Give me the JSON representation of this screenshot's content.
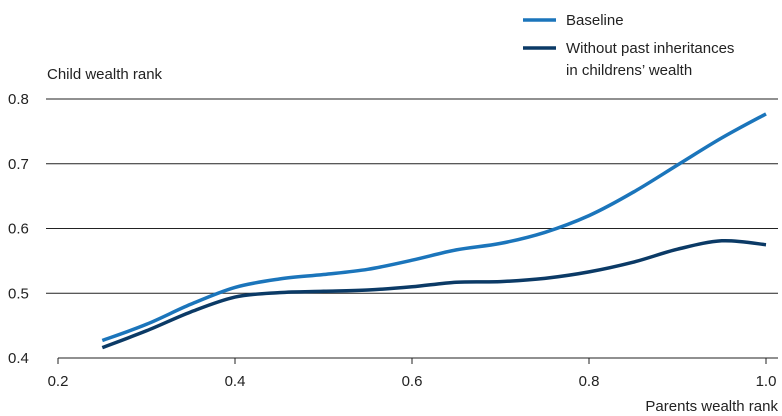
{
  "chart_data": {
    "type": "line",
    "title": "",
    "ylabel": "Child wealth rank",
    "xlabel": "Parents wealth rank",
    "xlim": [
      0.2,
      1.0
    ],
    "ylim": [
      0.4,
      0.8
    ],
    "xticks": [
      "0.2",
      "0.4",
      "0.6",
      "0.8",
      "1.0"
    ],
    "yticks": [
      "0.4",
      "0.5",
      "0.6",
      "0.7",
      "0.8"
    ],
    "grid": "horizontal",
    "legend_position": "top-right",
    "series": [
      {
        "name": "Baseline",
        "color": "#1b75bb",
        "x": [
          0.25,
          0.3,
          0.35,
          0.4,
          0.45,
          0.5,
          0.55,
          0.6,
          0.65,
          0.7,
          0.75,
          0.8,
          0.85,
          0.9,
          0.95,
          1.0
        ],
        "y": [
          0.427,
          0.452,
          0.483,
          0.509,
          0.522,
          0.529,
          0.537,
          0.551,
          0.567,
          0.577,
          0.594,
          0.62,
          0.656,
          0.698,
          0.74,
          0.777
        ]
      },
      {
        "name": "Without past inheritances in childrens’ wealth",
        "name_lines": [
          "Without past inheritances",
          "in childrens’ wealth"
        ],
        "color": "#0b3a66",
        "x": [
          0.25,
          0.3,
          0.35,
          0.4,
          0.45,
          0.5,
          0.55,
          0.6,
          0.65,
          0.7,
          0.75,
          0.8,
          0.85,
          0.9,
          0.95,
          1.0
        ],
        "y": [
          0.416,
          0.442,
          0.471,
          0.494,
          0.501,
          0.503,
          0.505,
          0.51,
          0.517,
          0.518,
          0.523,
          0.533,
          0.548,
          0.568,
          0.581,
          0.575
        ]
      }
    ]
  }
}
